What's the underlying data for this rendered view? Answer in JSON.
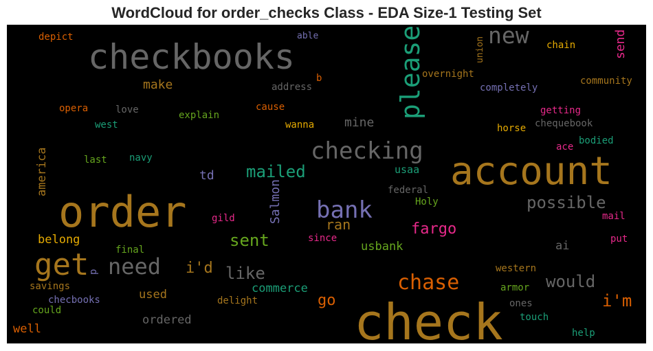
{
  "chart_data": {
    "type": "wordcloud",
    "title": "WordCloud for order_checks Class - EDA Size-1 Testing Set",
    "background": "#000000",
    "colormap": "Dark2",
    "words": [
      {
        "text": "check",
        "color": "#a6761d"
      },
      {
        "text": "order",
        "color": "#a6761d"
      },
      {
        "text": "account",
        "color": "#a6761d"
      },
      {
        "text": "checkbooks",
        "color": "#666666"
      },
      {
        "text": "get",
        "color": "#a6761d"
      },
      {
        "text": "please",
        "color": "#1b9e77"
      },
      {
        "text": "checking",
        "color": "#666666"
      },
      {
        "text": "bank",
        "color": "#7570b3"
      },
      {
        "text": "new",
        "color": "#666666"
      },
      {
        "text": "need",
        "color": "#666666"
      },
      {
        "text": "chase",
        "color": "#d95f02"
      },
      {
        "text": "possible",
        "color": "#666666"
      },
      {
        "text": "mailed",
        "color": "#1b9e77"
      },
      {
        "text": "sent",
        "color": "#66a61e"
      },
      {
        "text": "like",
        "color": "#666666"
      },
      {
        "text": "would",
        "color": "#666666"
      },
      {
        "text": "i'm",
        "color": "#d95f02"
      },
      {
        "text": "go",
        "color": "#d95f02"
      },
      {
        "text": "i'd",
        "color": "#a6761d"
      },
      {
        "text": "fargo",
        "color": "#e7298a"
      },
      {
        "text": "ran",
        "color": "#a6761d"
      },
      {
        "text": "Salmon",
        "color": "#7570b3"
      },
      {
        "text": "send",
        "color": "#e7298a"
      },
      {
        "text": "make",
        "color": "#a6761d"
      },
      {
        "text": "td",
        "color": "#7570b3"
      },
      {
        "text": "mine",
        "color": "#666666"
      },
      {
        "text": "america",
        "color": "#a6761d"
      },
      {
        "text": "commerce",
        "color": "#1b9e77"
      },
      {
        "text": "belong",
        "color": "#e6ab02"
      },
      {
        "text": "used",
        "color": "#a6761d"
      },
      {
        "text": "ordered",
        "color": "#666666"
      },
      {
        "text": "usbank",
        "color": "#66a61e"
      },
      {
        "text": "usaa",
        "color": "#1b9e77"
      },
      {
        "text": "well",
        "color": "#d95f02"
      },
      {
        "text": "ai",
        "color": "#666666"
      },
      {
        "text": "depict",
        "color": "#d95f02"
      },
      {
        "text": "able",
        "color": "#7570b3"
      },
      {
        "text": "chain",
        "color": "#e6ab02"
      },
      {
        "text": "union",
        "color": "#a6761d"
      },
      {
        "text": "overnight",
        "color": "#a6761d"
      },
      {
        "text": "community",
        "color": "#a6761d"
      },
      {
        "text": "completely",
        "color": "#7570b3"
      },
      {
        "text": "address",
        "color": "#666666"
      },
      {
        "text": "b",
        "color": "#d95f02"
      },
      {
        "text": "opera",
        "color": "#d95f02"
      },
      {
        "text": "love",
        "color": "#666666"
      },
      {
        "text": "explain",
        "color": "#66a61e"
      },
      {
        "text": "cause",
        "color": "#d95f02"
      },
      {
        "text": "getting",
        "color": "#e7298a"
      },
      {
        "text": "west",
        "color": "#1b9e77"
      },
      {
        "text": "wanna",
        "color": "#e6ab02"
      },
      {
        "text": "chequebook",
        "color": "#666666"
      },
      {
        "text": "horse",
        "color": "#e6ab02"
      },
      {
        "text": "bodied",
        "color": "#1b9e77"
      },
      {
        "text": "ace",
        "color": "#e7298a"
      },
      {
        "text": "last",
        "color": "#66a61e"
      },
      {
        "text": "navy",
        "color": "#1b9e77"
      },
      {
        "text": "federal",
        "color": "#666666"
      },
      {
        "text": "Holy",
        "color": "#66a61e"
      },
      {
        "text": "gild",
        "color": "#e7298a"
      },
      {
        "text": "mail",
        "color": "#e7298a"
      },
      {
        "text": "since",
        "color": "#e7298a"
      },
      {
        "text": "final",
        "color": "#66a61e"
      },
      {
        "text": "put",
        "color": "#e7298a"
      },
      {
        "text": "p",
        "color": "#7570b3"
      },
      {
        "text": "western",
        "color": "#a6761d"
      },
      {
        "text": "armor",
        "color": "#66a61e"
      },
      {
        "text": "savings",
        "color": "#a6761d"
      },
      {
        "text": "checbooks",
        "color": "#7570b3"
      },
      {
        "text": "delight",
        "color": "#a6761d"
      },
      {
        "text": "ones",
        "color": "#666666"
      },
      {
        "text": "could",
        "color": "#66a61e"
      },
      {
        "text": "touch",
        "color": "#1b9e77"
      },
      {
        "text": "help",
        "color": "#1b9e77"
      }
    ]
  }
}
